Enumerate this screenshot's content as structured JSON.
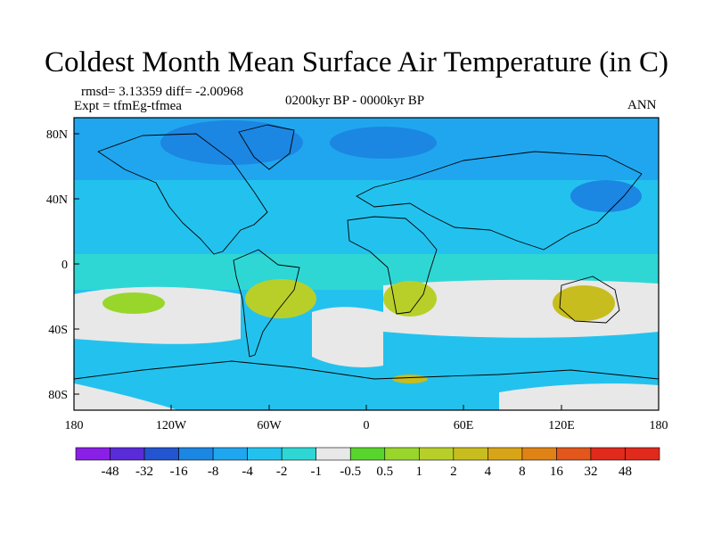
{
  "title": "Coldest Month Mean Surface Air Temperature (in C)",
  "stats": "rmsd= 3.13359 diff= -2.00968",
  "experiment": "Expt = tfmEg-tfmea",
  "period": "0200kyr BP - 0000kyr BP",
  "season": "ANN",
  "lat_ticks": [
    "80N",
    "40N",
    "0",
    "40S",
    "80S"
  ],
  "lon_ticks": [
    "180",
    "120W",
    "60W",
    "0",
    "60E",
    "120E",
    "180"
  ],
  "colorbar": {
    "colors": [
      "#8a1fe6",
      "#5a2bd8",
      "#2255cf",
      "#1c86e3",
      "#20a6ef",
      "#23c2ee",
      "#2ed7d4",
      "#e8e8e8",
      "#58d52c",
      "#99d62c",
      "#b8cf2a",
      "#c8bd1e",
      "#d9a518",
      "#e08316",
      "#e3561c",
      "#e02a1c"
    ],
    "labels": [
      "-48",
      "-32",
      "-16",
      "-8",
      "-4",
      "-2",
      "-1",
      "-0.5",
      "0.5",
      "1",
      "2",
      "4",
      "8",
      "16",
      "32",
      "48"
    ]
  }
}
